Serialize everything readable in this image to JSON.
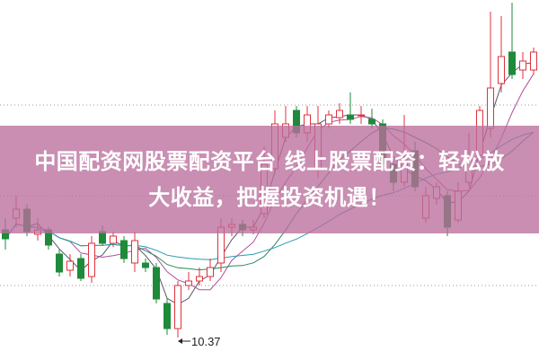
{
  "banner": {
    "line1": "中国配资网股票配资平台 线上股票配资：轻松放",
    "line2": "大收益，把握投资机遇！"
  },
  "chart_data": {
    "type": "candlestick",
    "title": "",
    "xlabel": "",
    "ylabel": "",
    "ylim": [
      10.25,
      14.25
    ],
    "grid": true,
    "colors": {
      "up": "#e0323c",
      "down": "#1e8a3a",
      "ma5": "#555566",
      "ma10": "#b0509a",
      "ma20": "#2a8a5a",
      "ma60": "#2a9ab0",
      "banner": "#ba6e9c"
    },
    "annotations": [
      {
        "text": "10.37",
        "candle_index": 16,
        "value": 10.37
      }
    ],
    "candles": [
      [
        11.57,
        11.47,
        11.7,
        11.35
      ],
      [
        11.7,
        11.8,
        11.95,
        11.6
      ],
      [
        11.8,
        11.55,
        11.85,
        11.5
      ],
      [
        11.52,
        11.57,
        11.7,
        11.45
      ],
      [
        11.57,
        11.4,
        11.6,
        11.35
      ],
      [
        11.3,
        11.1,
        11.35,
        11.05
      ],
      [
        11.12,
        11.22,
        11.3,
        11.05
      ],
      [
        11.25,
        11.03,
        11.3,
        11.0
      ],
      [
        11.05,
        11.42,
        11.5,
        10.98
      ],
      [
        11.55,
        11.42,
        11.62,
        11.4
      ],
      [
        11.42,
        11.5,
        11.55,
        11.38
      ],
      [
        11.45,
        11.25,
        11.5,
        11.2
      ],
      [
        11.2,
        11.45,
        11.55,
        11.1
      ],
      [
        11.2,
        11.15,
        11.25,
        11.1
      ],
      [
        11.15,
        10.8,
        11.2,
        10.75
      ],
      [
        10.75,
        10.47,
        10.8,
        10.4
      ],
      [
        10.47,
        10.95,
        11.0,
        10.37
      ],
      [
        10.95,
        11.0,
        11.1,
        10.9
      ],
      [
        11.0,
        11.05,
        11.15,
        10.95
      ],
      [
        11.05,
        11.15,
        11.25,
        11.0
      ],
      [
        11.2,
        11.6,
        11.7,
        11.1
      ],
      [
        11.6,
        11.63,
        11.7,
        11.5
      ],
      [
        11.63,
        11.57,
        11.68,
        11.5
      ],
      [
        11.57,
        11.6,
        11.68,
        11.52
      ],
      [
        11.75,
        12.3,
        12.5,
        11.7
      ],
      [
        12.25,
        12.75,
        12.9,
        12.2
      ],
      [
        12.6,
        12.75,
        12.95,
        12.55
      ],
      [
        12.9,
        12.65,
        12.95,
        12.6
      ],
      [
        12.65,
        12.85,
        12.95,
        12.55
      ],
      [
        12.25,
        12.75,
        12.95,
        12.15
      ],
      [
        12.75,
        12.85,
        12.9,
        12.7
      ],
      [
        12.82,
        12.9,
        12.98,
        12.75
      ],
      [
        12.85,
        12.8,
        13.1,
        12.75
      ],
      [
        12.85,
        12.85,
        12.95,
        12.75
      ],
      [
        12.8,
        12.75,
        12.92,
        12.7
      ],
      [
        12.75,
        12.3,
        12.8,
        12.25
      ],
      [
        12.3,
        12.1,
        12.35,
        12.0
      ],
      [
        12.1,
        12.35,
        12.85,
        12.05
      ],
      [
        12.45,
        12.05,
        12.55,
        12.0
      ],
      [
        11.7,
        11.95,
        12.05,
        11.65
      ],
      [
        11.92,
        12.05,
        12.1,
        11.85
      ],
      [
        11.95,
        11.6,
        12.0,
        11.5
      ],
      [
        11.68,
        12.0,
        12.1,
        11.65
      ],
      [
        12.1,
        12.4,
        12.65,
        12.05
      ],
      [
        12.4,
        12.9,
        12.95,
        12.35
      ],
      [
        12.7,
        13.15,
        14.0,
        12.6
      ],
      [
        13.2,
        13.5,
        13.95,
        13.1
      ],
      [
        13.55,
        13.3,
        14.1,
        13.25
      ],
      [
        13.35,
        13.45,
        13.55,
        13.25
      ],
      [
        13.35,
        13.55,
        13.6,
        13.3
      ]
    ]
  }
}
